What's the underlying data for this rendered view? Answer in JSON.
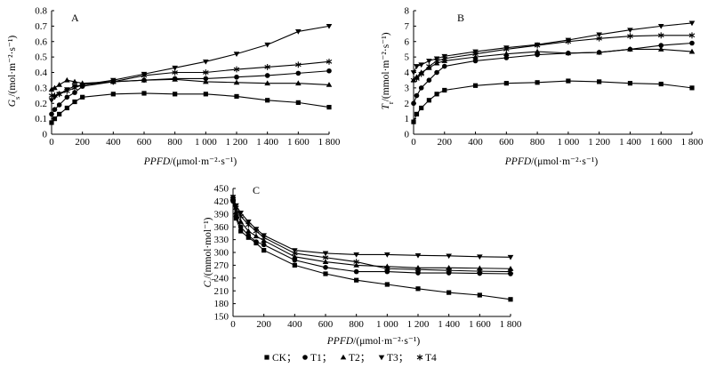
{
  "chart_data": [
    {
      "panel_label": "A",
      "type": "line",
      "ylabel": {
        "symbol": "G",
        "sub": "s",
        "unit": "/(mol·m⁻²·s⁻¹)"
      },
      "xlabel": {
        "symbol": "PPFD",
        "unit": "/(μmol·m⁻²·s⁻¹)"
      },
      "x": [
        0,
        20,
        50,
        100,
        150,
        200,
        400,
        600,
        800,
        1000,
        1200,
        1400,
        1600,
        1800
      ],
      "xlim": [
        0,
        1800
      ],
      "ylim": [
        0,
        0.8
      ],
      "x_tick_values": [
        0,
        200,
        400,
        600,
        800,
        1000,
        1200,
        1400,
        1600,
        1800
      ],
      "x_tick_labels": [
        "0",
        "200",
        "400",
        "600",
        "800",
        "1 000",
        "1 200",
        "1 400",
        "1 600",
        "1 800"
      ],
      "y_tick_values": [
        0,
        0.1,
        0.2,
        0.3,
        0.4,
        0.5,
        0.6,
        0.7,
        0.8
      ],
      "y_tick_labels": [
        "0",
        "0.1",
        "0.2",
        "0.3",
        "0.4",
        "0.5",
        "0.6",
        "0.7",
        "0.8"
      ],
      "series": [
        {
          "name": "CK",
          "marker": "square",
          "values": [
            0.075,
            0.1,
            0.13,
            0.17,
            0.21,
            0.24,
            0.26,
            0.265,
            0.26,
            0.26,
            0.245,
            0.22,
            0.205,
            0.175
          ]
        },
        {
          "name": "T1",
          "marker": "circle",
          "values": [
            0.13,
            0.16,
            0.19,
            0.24,
            0.27,
            0.31,
            0.34,
            0.35,
            0.36,
            0.36,
            0.37,
            0.38,
            0.395,
            0.41
          ]
        },
        {
          "name": "T2",
          "marker": "triangle-up",
          "values": [
            0.29,
            0.3,
            0.32,
            0.35,
            0.34,
            0.33,
            0.34,
            0.35,
            0.355,
            0.34,
            0.335,
            0.33,
            0.33,
            0.32
          ]
        },
        {
          "name": "T3",
          "marker": "triangle-down",
          "values": [
            0.22,
            0.24,
            0.26,
            0.29,
            0.31,
            0.32,
            0.35,
            0.39,
            0.43,
            0.47,
            0.52,
            0.58,
            0.665,
            0.7
          ]
        },
        {
          "name": "T4",
          "marker": "asterisk",
          "values": [
            0.25,
            0.25,
            0.26,
            0.28,
            0.3,
            0.32,
            0.34,
            0.38,
            0.4,
            0.4,
            0.42,
            0.435,
            0.45,
            0.47
          ]
        }
      ]
    },
    {
      "panel_label": "B",
      "type": "line",
      "ylabel": {
        "symbol": "T",
        "sub": "r",
        "unit": "/(mmol·m⁻²·s⁻¹)"
      },
      "xlabel": {
        "symbol": "PPFD",
        "unit": "/(μmol·m⁻²·s⁻¹)"
      },
      "x": [
        0,
        20,
        50,
        100,
        150,
        200,
        400,
        600,
        800,
        1000,
        1200,
        1400,
        1600,
        1800
      ],
      "xlim": [
        0,
        1800
      ],
      "ylim": [
        0,
        8
      ],
      "x_tick_values": [
        0,
        200,
        400,
        600,
        800,
        1000,
        1200,
        1400,
        1600,
        1800
      ],
      "x_tick_labels": [
        "0",
        "200",
        "400",
        "600",
        "800",
        "1 000",
        "1 200",
        "1 400",
        "1 600",
        "1 800"
      ],
      "y_tick_values": [
        0,
        1,
        2,
        3,
        4,
        5,
        6,
        7,
        8
      ],
      "y_tick_labels": [
        "0",
        "1",
        "2",
        "3",
        "4",
        "5",
        "6",
        "7",
        "8"
      ],
      "series": [
        {
          "name": "CK",
          "marker": "square",
          "values": [
            0.8,
            1.3,
            1.7,
            2.2,
            2.6,
            2.85,
            3.15,
            3.3,
            3.35,
            3.45,
            3.4,
            3.3,
            3.25,
            3.0
          ]
        },
        {
          "name": "T1",
          "marker": "circle",
          "values": [
            2.0,
            2.5,
            3.0,
            3.5,
            4.0,
            4.4,
            4.75,
            4.95,
            5.15,
            5.25,
            5.3,
            5.5,
            5.75,
            5.9
          ]
        },
        {
          "name": "T2",
          "marker": "triangle-up",
          "values": [
            3.5,
            3.7,
            4.0,
            4.3,
            4.6,
            4.75,
            5.0,
            5.2,
            5.35,
            5.25,
            5.3,
            5.5,
            5.5,
            5.35
          ]
        },
        {
          "name": "T3",
          "marker": "triangle-down",
          "values": [
            4.0,
            4.4,
            4.5,
            4.75,
            4.9,
            5.05,
            5.35,
            5.6,
            5.8,
            6.1,
            6.45,
            6.75,
            7.0,
            7.2
          ]
        },
        {
          "name": "T4",
          "marker": "asterisk",
          "values": [
            3.5,
            3.6,
            3.9,
            4.4,
            4.75,
            4.9,
            5.2,
            5.5,
            5.75,
            6.0,
            6.2,
            6.35,
            6.4,
            6.4
          ]
        }
      ]
    },
    {
      "panel_label": "C",
      "type": "line",
      "ylabel": {
        "symbol": "C",
        "sub": "i",
        "unit": "/(mmol·mol⁻¹)"
      },
      "xlabel": {
        "symbol": "PPFD",
        "unit": "/(μmol·m⁻²·s⁻¹)"
      },
      "x": [
        0,
        20,
        50,
        100,
        150,
        200,
        400,
        600,
        800,
        1000,
        1200,
        1400,
        1600,
        1800
      ],
      "xlim": [
        0,
        1800
      ],
      "ylim": [
        150,
        450
      ],
      "x_tick_values": [
        0,
        200,
        400,
        600,
        800,
        1000,
        1200,
        1400,
        1600,
        1800
      ],
      "x_tick_labels": [
        "0",
        "200",
        "400",
        "600",
        "800",
        "1 000",
        "1 200",
        "1 400",
        "1 600",
        "1 800"
      ],
      "y_tick_values": [
        150,
        180,
        210,
        240,
        270,
        300,
        330,
        360,
        390,
        420,
        450
      ],
      "y_tick_labels": [
        "150",
        "180",
        "210",
        "240",
        "270",
        "300",
        "330",
        "360",
        "390",
        "420",
        "450"
      ],
      "series": [
        {
          "name": "CK",
          "marker": "square",
          "values": [
            425,
            380,
            350,
            335,
            322,
            305,
            270,
            250,
            235,
            225,
            215,
            206,
            200,
            190
          ]
        },
        {
          "name": "T1",
          "marker": "circle",
          "values": [
            420,
            385,
            360,
            340,
            325,
            318,
            282,
            265,
            255,
            255,
            252,
            252,
            251,
            250
          ]
        },
        {
          "name": "T2",
          "marker": "triangle-up",
          "values": [
            428,
            395,
            372,
            350,
            338,
            328,
            290,
            278,
            270,
            267,
            264,
            264,
            263,
            262
          ]
        },
        {
          "name": "T3",
          "marker": "triangle-down",
          "values": [
            430,
            410,
            393,
            372,
            355,
            340,
            305,
            298,
            295,
            295,
            293,
            292,
            290,
            289
          ]
        },
        {
          "name": "T4",
          "marker": "asterisk",
          "values": [
            425,
            405,
            385,
            365,
            350,
            335,
            298,
            288,
            278,
            262,
            260,
            258,
            256,
            255
          ]
        }
      ]
    }
  ],
  "legend": {
    "separator": "；"
  }
}
